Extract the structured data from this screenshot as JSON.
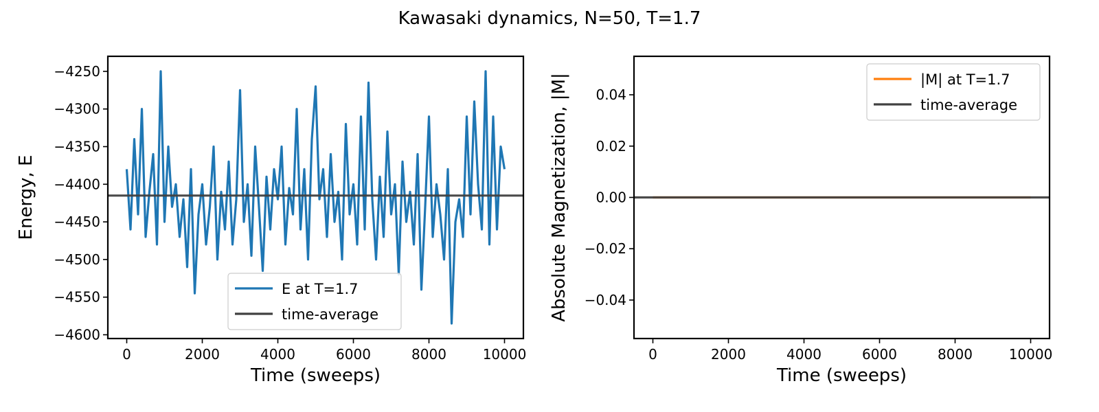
{
  "figure": {
    "title": "Kawasaki dynamics, N=50, T=1.7"
  },
  "chart_data": [
    {
      "type": "line",
      "title": "",
      "xlabel": "Time (sweeps)",
      "ylabel": "Energy, E",
      "xlim": [
        -500,
        10500
      ],
      "ylim": [
        -4605,
        -4230
      ],
      "xticks": [
        0,
        2000,
        4000,
        6000,
        8000,
        10000
      ],
      "yticks": [
        -4600,
        -4550,
        -4500,
        -4450,
        -4400,
        -4350,
        -4300,
        -4250
      ],
      "xtick_labels": [
        "0",
        "2000",
        "4000",
        "6000",
        "8000",
        "10000"
      ],
      "ytick_labels": [
        "−4600",
        "−4550",
        "−4500",
        "−4450",
        "−4400",
        "−4350",
        "−4300",
        "−4250"
      ],
      "legend_position": "lower center",
      "grid": false,
      "series": [
        {
          "name": "E at T=1.7",
          "color": "#1f77b4",
          "x": [
            0,
            100,
            200,
            300,
            400,
            500,
            600,
            700,
            800,
            900,
            1000,
            1100,
            1200,
            1300,
            1400,
            1500,
            1600,
            1700,
            1800,
            1900,
            2000,
            2100,
            2200,
            2300,
            2400,
            2500,
            2600,
            2700,
            2800,
            2900,
            3000,
            3100,
            3200,
            3300,
            3400,
            3500,
            3600,
            3700,
            3800,
            3900,
            4000,
            4100,
            4200,
            4300,
            4400,
            4500,
            4600,
            4700,
            4800,
            4900,
            5000,
            5100,
            5200,
            5300,
            5400,
            5500,
            5600,
            5700,
            5800,
            5900,
            6000,
            6100,
            6200,
            6300,
            6400,
            6500,
            6600,
            6700,
            6800,
            6900,
            7000,
            7100,
            7200,
            7300,
            7400,
            7500,
            7600,
            7700,
            7800,
            7900,
            8000,
            8100,
            8200,
            8300,
            8400,
            8500,
            8600,
            8700,
            8800,
            8900,
            9000,
            9100,
            9200,
            9300,
            9400,
            9500,
            9600,
            9700,
            9800,
            9900,
            10000
          ],
          "y": [
            -4380,
            -4460,
            -4340,
            -4440,
            -4300,
            -4470,
            -4410,
            -4360,
            -4480,
            -4250,
            -4450,
            -4350,
            -4430,
            -4400,
            -4470,
            -4420,
            -4510,
            -4380,
            -4545,
            -4440,
            -4400,
            -4480,
            -4430,
            -4350,
            -4500,
            -4410,
            -4460,
            -4370,
            -4480,
            -4420,
            -4275,
            -4450,
            -4400,
            -4495,
            -4350,
            -4430,
            -4515,
            -4390,
            -4460,
            -4380,
            -4420,
            -4350,
            -4480,
            -4405,
            -4440,
            -4300,
            -4460,
            -4380,
            -4500,
            -4340,
            -4270,
            -4420,
            -4380,
            -4470,
            -4360,
            -4450,
            -4410,
            -4500,
            -4320,
            -4440,
            -4400,
            -4480,
            -4310,
            -4460,
            -4265,
            -4420,
            -4500,
            -4390,
            -4470,
            -4330,
            -4440,
            -4400,
            -4520,
            -4370,
            -4450,
            -4410,
            -4480,
            -4360,
            -4540,
            -4430,
            -4310,
            -4470,
            -4400,
            -4440,
            -4500,
            -4380,
            -4585,
            -4450,
            -4420,
            -4470,
            -4310,
            -4440,
            -4290,
            -4400,
            -4460,
            -4250,
            -4480,
            -4310,
            -4460,
            -4350,
            -4380
          ]
        },
        {
          "name": "time-average",
          "color": "#404040",
          "x": [
            -500,
            10500
          ],
          "y": [
            -4415,
            -4415
          ]
        }
      ]
    },
    {
      "type": "line",
      "title": "",
      "xlabel": "Time (sweeps)",
      "ylabel": "Absolute Magnetization, |M|",
      "xlim": [
        -500,
        10500
      ],
      "ylim": [
        -0.055,
        0.055
      ],
      "xticks": [
        0,
        2000,
        4000,
        6000,
        8000,
        10000
      ],
      "yticks": [
        -0.04,
        -0.02,
        0.0,
        0.02,
        0.04
      ],
      "xtick_labels": [
        "0",
        "2000",
        "4000",
        "6000",
        "8000",
        "10000"
      ],
      "ytick_labels": [
        "−0.04",
        "−0.02",
        "0.00",
        "0.02",
        "0.04"
      ],
      "legend_position": "upper right",
      "grid": false,
      "series": [
        {
          "name": "|M| at T=1.7",
          "color": "#ff7f0e",
          "x": [
            0,
            10000
          ],
          "y": [
            0,
            0
          ]
        },
        {
          "name": "time-average",
          "color": "#404040",
          "x": [
            -500,
            10500
          ],
          "y": [
            0,
            0
          ]
        }
      ]
    }
  ]
}
